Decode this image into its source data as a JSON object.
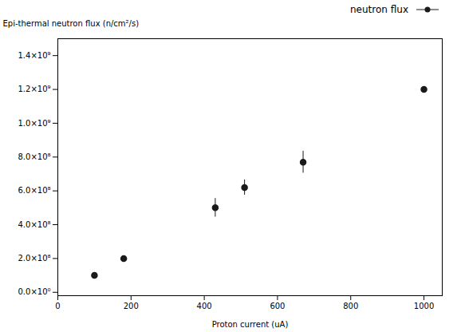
{
  "chart_data": {
    "type": "scatter",
    "xlabel": "Proton current (uA)",
    "ylabel": "Epi-thermal neutron flux (n/cm²/s)",
    "x": [
      100,
      180,
      430,
      510,
      670,
      1000
    ],
    "series": [
      {
        "name": "neutron flux",
        "color": "#1a1a1a",
        "marker": "circle",
        "values": [
          100000000,
          200000000,
          500000000,
          620000000,
          770000000,
          1200000000
        ],
        "yerr": [
          0,
          5000000,
          55000000,
          45000000,
          65000000,
          0
        ]
      }
    ],
    "xlim": [
      0,
      1050
    ],
    "ylim": [
      -20000000,
      1500000000
    ],
    "xticks": [
      0,
      200,
      400,
      600,
      800,
      1000
    ],
    "yticks": [
      {
        "value": 0,
        "label": "0.0×10⁰"
      },
      {
        "value": 200000000,
        "label": "2.0×10⁸"
      },
      {
        "value": 400000000,
        "label": "4.0×10⁸"
      },
      {
        "value": 600000000,
        "label": "6.0×10⁸"
      },
      {
        "value": 800000000,
        "label": "8.0×10⁸"
      },
      {
        "value": 1000000000,
        "label": "1.0×10⁹"
      },
      {
        "value": 1200000000,
        "label": "1.2×10⁹"
      },
      {
        "value": 1400000000,
        "label": "1.4×10⁹"
      }
    ],
    "grid": false,
    "legend": "upper right"
  }
}
